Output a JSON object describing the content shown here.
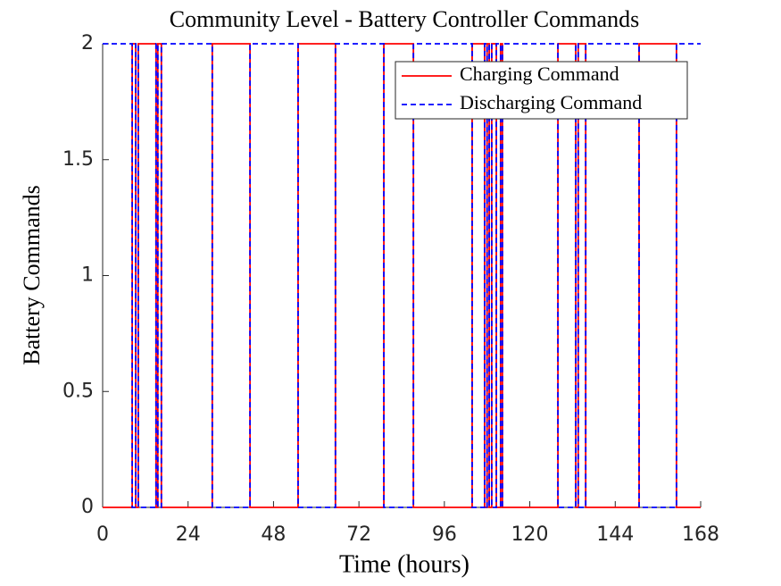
{
  "chart_data": {
    "type": "line",
    "title": "Community Level - Battery Controller Commands",
    "xlabel": "Time (hours)",
    "ylabel": "Battery Commands",
    "x": [
      0,
      8.3,
      8.3,
      9.3,
      9.3,
      10,
      10,
      15,
      15,
      15.5,
      15.5,
      16.5,
      16.5,
      30.8,
      30.8,
      41.4,
      41.4,
      54.9,
      54.9,
      65.4,
      65.4,
      79,
      79,
      87.3,
      87.3,
      103.8,
      103.8,
      107.3,
      107.3,
      108,
      108,
      108.6,
      108.6,
      109.3,
      109.3,
      110.6,
      110.6,
      111.8,
      111.8,
      112.3,
      112.3,
      127.9,
      127.9,
      132.9,
      132.9,
      133.6,
      133.6,
      135.7,
      135.7,
      150.7,
      150.7,
      161.2,
      161.2,
      168
    ],
    "series": [
      {
        "name": "Charging Command",
        "color": "#ff0000",
        "dash": false,
        "values": [
          0,
          0,
          2,
          2,
          0,
          0,
          2,
          2,
          0,
          0,
          2,
          2,
          0,
          0,
          2,
          2,
          0,
          0,
          2,
          2,
          0,
          0,
          2,
          2,
          0,
          0,
          2,
          2,
          0,
          0,
          2,
          2,
          0,
          0,
          2,
          2,
          0,
          0,
          2,
          2,
          0,
          0,
          2,
          2,
          0,
          0,
          2,
          2,
          0,
          0,
          2,
          2,
          0,
          0
        ]
      },
      {
        "name": "Discharging Command",
        "color": "#0000ff",
        "dash": true,
        "values": [
          2,
          2,
          0,
          0,
          2,
          2,
          0,
          0,
          2,
          2,
          0,
          0,
          2,
          2,
          0,
          0,
          2,
          2,
          0,
          0,
          2,
          2,
          0,
          0,
          2,
          2,
          0,
          0,
          2,
          2,
          0,
          0,
          2,
          2,
          0,
          0,
          2,
          2,
          0,
          0,
          2,
          2,
          0,
          0,
          2,
          2,
          0,
          0,
          2,
          2,
          0,
          0,
          2,
          2
        ]
      }
    ],
    "xlim": [
      0,
      168
    ],
    "xticks": [
      0,
      24,
      48,
      72,
      96,
      120,
      144,
      168
    ],
    "ylim": [
      0,
      2
    ],
    "yticks": [
      0,
      0.5,
      1,
      1.5,
      2
    ],
    "legend": "top-right"
  }
}
